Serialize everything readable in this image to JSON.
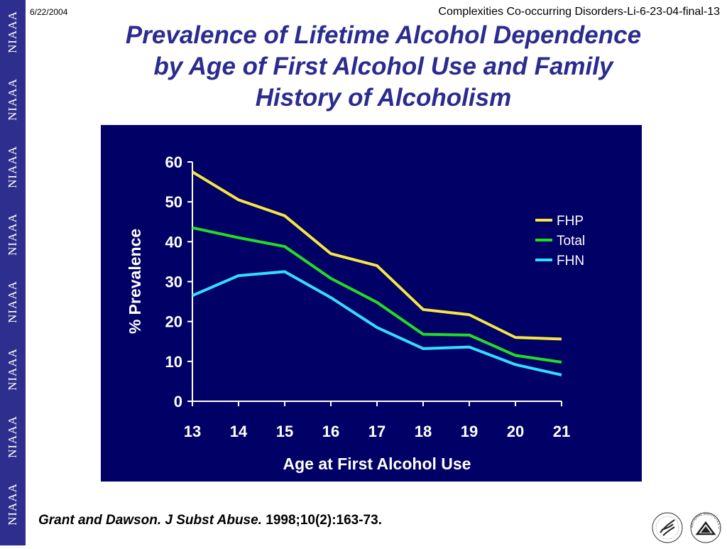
{
  "header": {
    "date": "6/22/2004",
    "document_ref": "Complexities Co-occurring Disorders-Li-6-23-04-final-13"
  },
  "sidebar": {
    "brand_text": "NIAAA"
  },
  "title": {
    "line1": "Prevalence of Lifetime Alcohol Dependence",
    "line2": "by Age of First Alcohol Use and Family",
    "line3": "History of Alcoholism"
  },
  "chart_data": {
    "type": "line",
    "xlabel": "Age at First Alcohol Use",
    "ylabel": "% Prevalence",
    "x": [
      13,
      14,
      15,
      16,
      17,
      18,
      19,
      20,
      21
    ],
    "ylim": [
      0,
      60
    ],
    "yticks": [
      0,
      10,
      20,
      30,
      40,
      50,
      60
    ],
    "grid": false,
    "legend_position": "right",
    "background_color": "#000066",
    "series": [
      {
        "name": "FHP",
        "color": "#f5e642",
        "values": [
          57.5,
          50.5,
          46.5,
          37,
          34,
          23,
          21.7,
          16,
          15.6
        ]
      },
      {
        "name": "Total",
        "color": "#22dd22",
        "values": [
          43.5,
          41,
          38.8,
          30.8,
          24.8,
          16.8,
          16.6,
          11.5,
          9.8
        ]
      },
      {
        "name": "FHN",
        "color": "#33ddff",
        "values": [
          26.5,
          31.5,
          32.5,
          26,
          18.5,
          13.2,
          13.6,
          9.2,
          6.6
        ]
      }
    ]
  },
  "citation": {
    "italic_part": "Grant and Dawson. J Subst Abuse.",
    "plain_part": " 1998;10(2):163-73."
  },
  "logos": {
    "hhs_icon": "hhs-eagle-icon",
    "nih_icon": "nih-seal-icon",
    "nih_text": "NATIONAL INSTITUTES OF HEALTH"
  }
}
